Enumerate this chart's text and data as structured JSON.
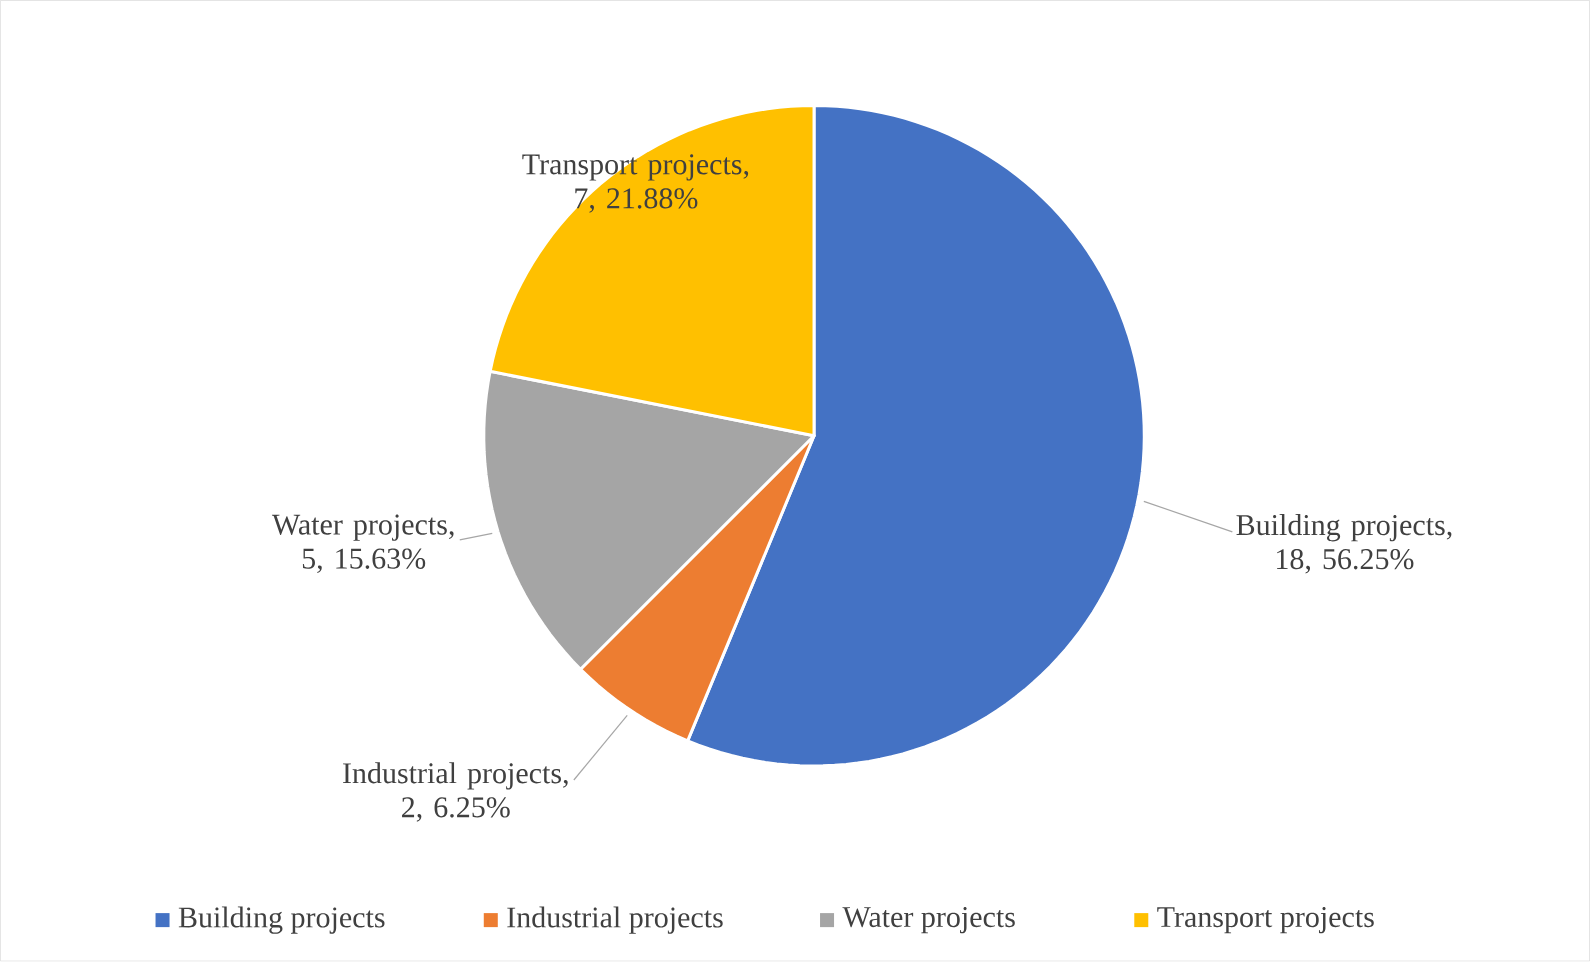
{
  "chart_data": {
    "type": "pie",
    "categories": [
      "Building projects",
      "Industrial projects",
      "Water projects",
      "Transport projects"
    ],
    "values": [
      18,
      2,
      5,
      7
    ],
    "value_labels": [
      "Building projects, 18, 56.25%",
      "Industrial projects, 2, 6.25%",
      "Water projects, 5, 15.63%",
      "Transport projects, 7, 21.88%"
    ],
    "colors": [
      "#4472c4",
      "#ed7d31",
      "#a5a5a5",
      "#ffc000"
    ],
    "legend": "bottom"
  }
}
